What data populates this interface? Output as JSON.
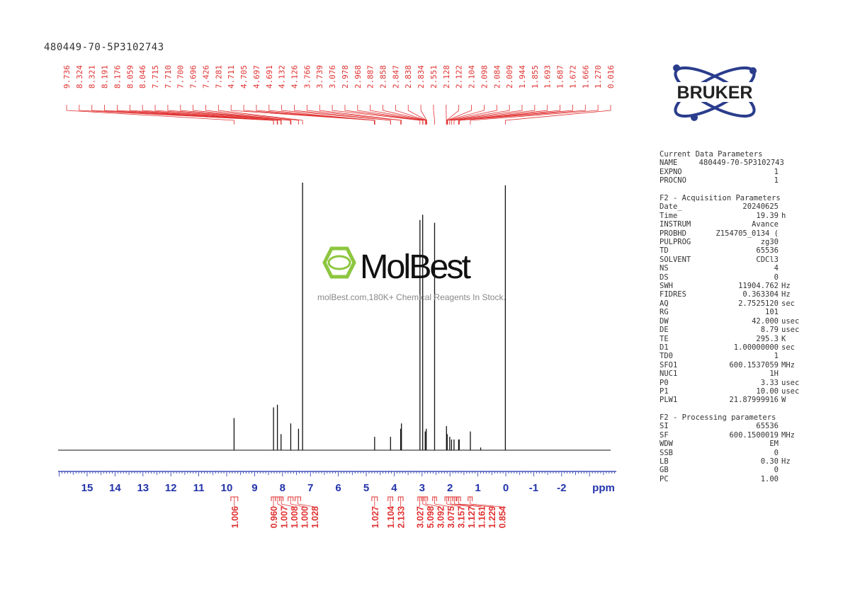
{
  "sample_name": "480449-70-5P3102743",
  "logos": {
    "bruker": "BRUKER",
    "molbest": "MolBest",
    "molbest_tagline": "molBest.com,180K+ Chemical Reagents In Stock."
  },
  "colors": {
    "spectrum": "#111111",
    "peak_labels": "#e03030",
    "axis": "#2233aa",
    "integrals": "#e03030",
    "bruker_text": "#222222",
    "bruker_orbit": "#2a3c8c",
    "molbest_green": "#8dc63f"
  },
  "chart_data": {
    "type": "line",
    "xlabel": "ppm",
    "xlim": [
      16,
      -4
    ],
    "x_ticks": [
      "15",
      "14",
      "13",
      "12",
      "11",
      "10",
      "9",
      "8",
      "7",
      "6",
      "5",
      "4",
      "3",
      "2",
      "1",
      "0",
      "-1",
      "-2"
    ],
    "peak_labels": [
      "9.736",
      "8.324",
      "8.321",
      "8.191",
      "8.176",
      "8.059",
      "8.046",
      "7.715",
      "7.710",
      "7.700",
      "7.696",
      "7.426",
      "7.281",
      "4.711",
      "4.705",
      "4.697",
      "4.691",
      "4.132",
      "4.126",
      "3.766",
      "3.739",
      "3.076",
      "2.978",
      "2.968",
      "2.887",
      "2.858",
      "2.847",
      "2.838",
      "2.834",
      "2.551",
      "2.128",
      "2.122",
      "2.104",
      "2.098",
      "2.084",
      "2.009",
      "1.944",
      "1.855",
      "1.693",
      "1.687",
      "1.672",
      "1.666",
      "1.270",
      "0.016"
    ],
    "peaks": [
      {
        "ppm": 9.736,
        "height": 0.12
      },
      {
        "ppm": 8.322,
        "height": 0.16
      },
      {
        "ppm": 8.183,
        "height": 0.17
      },
      {
        "ppm": 8.052,
        "height": 0.06
      },
      {
        "ppm": 7.705,
        "height": 0.1
      },
      {
        "ppm": 7.426,
        "height": 0.08
      },
      {
        "ppm": 7.281,
        "height": 1.0
      },
      {
        "ppm": 4.7,
        "height": 0.05
      },
      {
        "ppm": 4.129,
        "height": 0.05
      },
      {
        "ppm": 3.766,
        "height": 0.08
      },
      {
        "ppm": 3.739,
        "height": 0.1
      },
      {
        "ppm": 3.076,
        "height": 0.86
      },
      {
        "ppm": 2.978,
        "height": 0.88
      },
      {
        "ppm": 2.887,
        "height": 0.07
      },
      {
        "ppm": 2.85,
        "height": 0.08
      },
      {
        "ppm": 2.551,
        "height": 0.85
      },
      {
        "ppm": 2.125,
        "height": 0.09
      },
      {
        "ppm": 2.1,
        "height": 0.06
      },
      {
        "ppm": 2.009,
        "height": 0.05
      },
      {
        "ppm": 1.944,
        "height": 0.04
      },
      {
        "ppm": 1.855,
        "height": 0.04
      },
      {
        "ppm": 1.69,
        "height": 0.04
      },
      {
        "ppm": 1.669,
        "height": 0.04
      },
      {
        "ppm": 1.27,
        "height": 0.07
      },
      {
        "ppm": 0.9,
        "height": 0.01
      },
      {
        "ppm": 0.016,
        "height": 0.99
      }
    ],
    "integrals": [
      {
        "ppm_from": 9.85,
        "ppm_to": 9.6,
        "value": "1.006"
      },
      {
        "ppm_from": 8.4,
        "ppm_to": 8.25,
        "value": "0.960"
      },
      {
        "ppm_from": 8.25,
        "ppm_to": 8.1,
        "value": "1.007"
      },
      {
        "ppm_from": 8.1,
        "ppm_to": 7.98,
        "value": "1.008"
      },
      {
        "ppm_from": 7.8,
        "ppm_to": 7.62,
        "value": "1.000"
      },
      {
        "ppm_from": 7.55,
        "ppm_to": 7.35,
        "value": "1.028"
      },
      {
        "ppm_from": 4.8,
        "ppm_to": 4.6,
        "value": "1.027"
      },
      {
        "ppm_from": 4.22,
        "ppm_to": 4.05,
        "value": "1.104"
      },
      {
        "ppm_from": 3.85,
        "ppm_to": 3.68,
        "value": "2.133"
      },
      {
        "ppm_from": 3.15,
        "ppm_to": 3.02,
        "value": "3.027"
      },
      {
        "ppm_from": 3.02,
        "ppm_to": 2.93,
        "value": "5.098"
      },
      {
        "ppm_from": 2.93,
        "ppm_to": 2.8,
        "value": "3.092"
      },
      {
        "ppm_from": 2.62,
        "ppm_to": 2.48,
        "value": "3.075"
      },
      {
        "ppm_from": 2.18,
        "ppm_to": 2.05,
        "value": "3.157"
      },
      {
        "ppm_from": 2.05,
        "ppm_to": 1.9,
        "value": "1.127"
      },
      {
        "ppm_from": 1.9,
        "ppm_to": 1.78,
        "value": "1.161"
      },
      {
        "ppm_from": 1.75,
        "ppm_to": 1.62,
        "value": "1.229"
      },
      {
        "ppm_from": 1.35,
        "ppm_to": 1.2,
        "value": "0.854"
      }
    ]
  },
  "parameters": {
    "current": {
      "title": "Current Data Parameters",
      "rows": [
        {
          "k": "NAME",
          "v": "480449-70-5P3102743",
          "u": ""
        },
        {
          "k": "EXPNO",
          "v": "1",
          "u": ""
        },
        {
          "k": "PROCNO",
          "v": "1",
          "u": ""
        }
      ]
    },
    "acquisition": {
      "title": "F2 - Acquisition Parameters",
      "rows": [
        {
          "k": "Date_",
          "v": "20240625",
          "u": ""
        },
        {
          "k": "Time",
          "v": "19.39",
          "u": "h"
        },
        {
          "k": "INSTRUM",
          "v": "Avance",
          "u": ""
        },
        {
          "k": "PROBHD",
          "v": "Z154705_0134 (",
          "u": ""
        },
        {
          "k": "PULPROG",
          "v": "zg30",
          "u": ""
        },
        {
          "k": "TD",
          "v": "65536",
          "u": ""
        },
        {
          "k": "SOLVENT",
          "v": "CDCl3",
          "u": ""
        },
        {
          "k": "NS",
          "v": "4",
          "u": ""
        },
        {
          "k": "DS",
          "v": "0",
          "u": ""
        },
        {
          "k": "SWH",
          "v": "11904.762",
          "u": "Hz"
        },
        {
          "k": "FIDRES",
          "v": "0.363304",
          "u": "Hz"
        },
        {
          "k": "AQ",
          "v": "2.7525120",
          "u": "sec"
        },
        {
          "k": "RG",
          "v": "101",
          "u": ""
        },
        {
          "k": "DW",
          "v": "42.000",
          "u": "usec"
        },
        {
          "k": "DE",
          "v": "8.79",
          "u": "usec"
        },
        {
          "k": "TE",
          "v": "295.3",
          "u": "K"
        },
        {
          "k": "D1",
          "v": "1.00000000",
          "u": "sec"
        },
        {
          "k": "TD0",
          "v": "1",
          "u": ""
        },
        {
          "k": "SFO1",
          "v": "600.1537059",
          "u": "MHz"
        },
        {
          "k": "NUC1",
          "v": "1H",
          "u": ""
        },
        {
          "k": "P0",
          "v": "3.33",
          "u": "usec"
        },
        {
          "k": "P1",
          "v": "10.00",
          "u": "usec"
        },
        {
          "k": "PLW1",
          "v": "21.87999916",
          "u": "W"
        }
      ]
    },
    "processing": {
      "title": "F2 - Processing parameters",
      "rows": [
        {
          "k": "SI",
          "v": "65536",
          "u": ""
        },
        {
          "k": "SF",
          "v": "600.1500019",
          "u": "MHz"
        },
        {
          "k": "WDW",
          "v": "EM",
          "u": ""
        },
        {
          "k": "SSB",
          "v": "0",
          "u": ""
        },
        {
          "k": "LB",
          "v": "0.30",
          "u": "Hz"
        },
        {
          "k": "GB",
          "v": "0",
          "u": ""
        },
        {
          "k": "PC",
          "v": "1.00",
          "u": ""
        }
      ]
    }
  }
}
